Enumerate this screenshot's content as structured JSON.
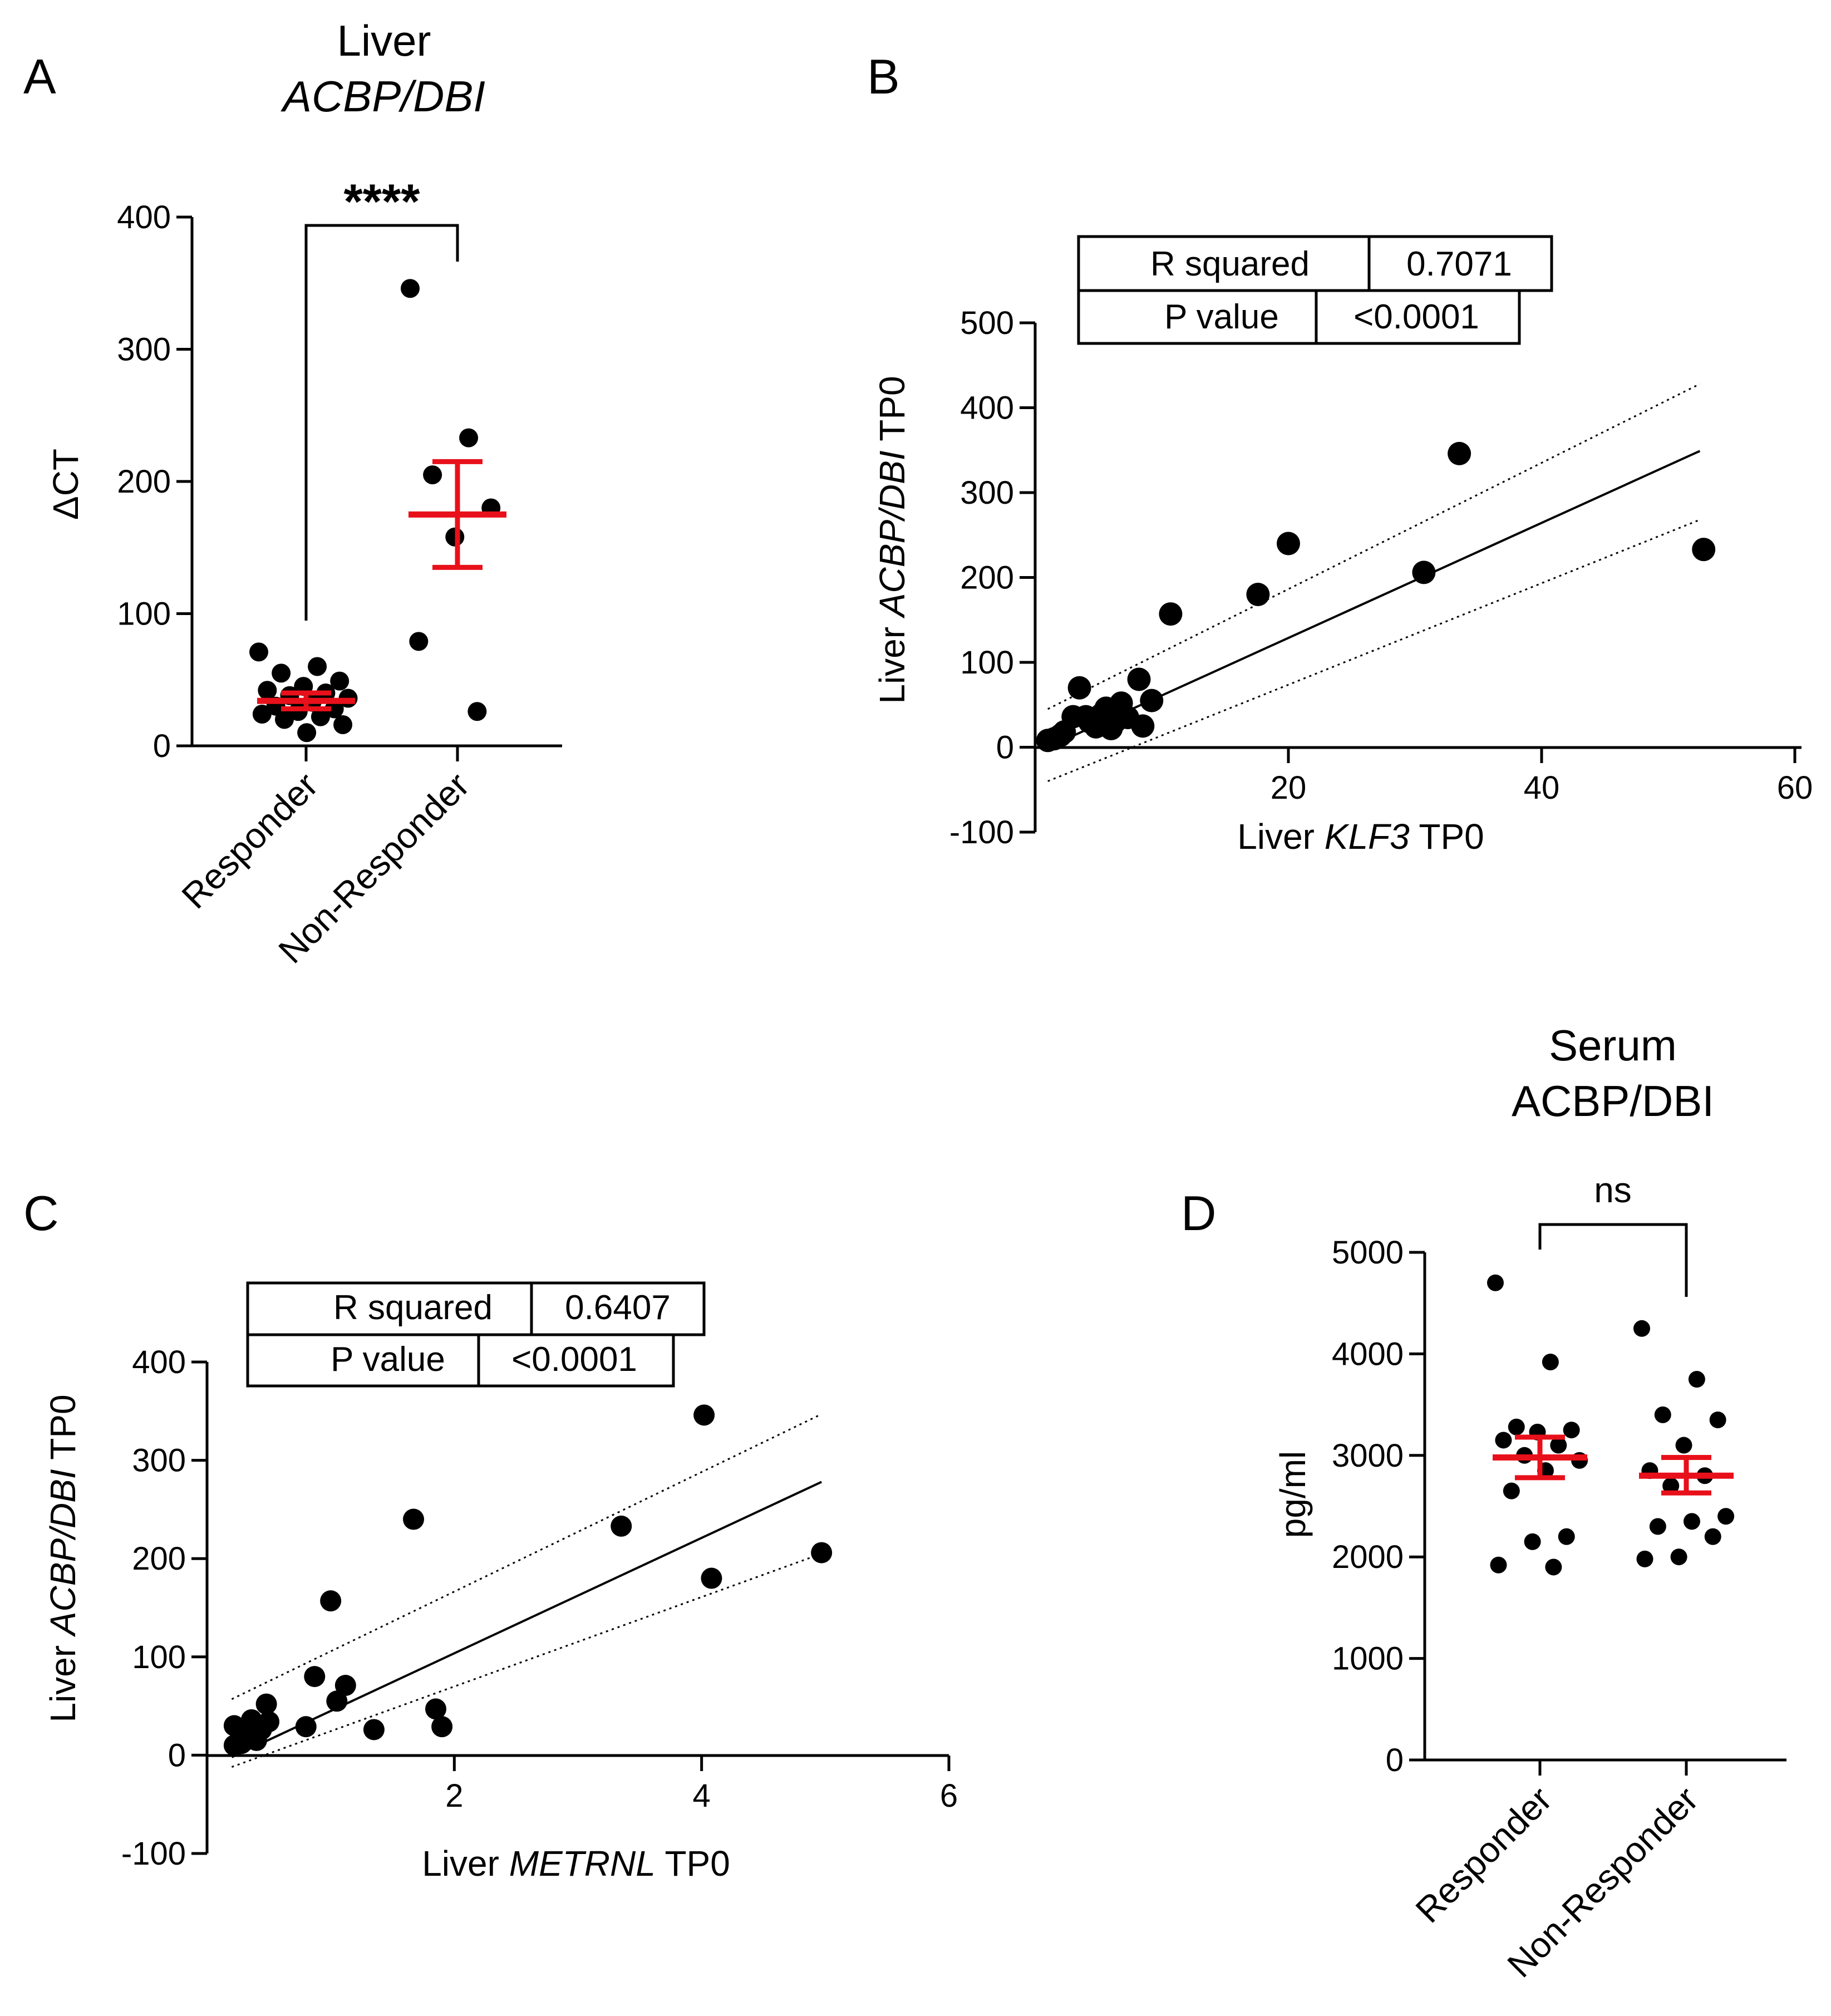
{
  "colors": {
    "mean_sem": "#e8101a",
    "points": "#000000",
    "fit": "#000000"
  },
  "chart_data": [
    {
      "panel": "A",
      "type": "scatter",
      "title": "Liver",
      "subtitle": "ACBP/DBI",
      "ylabel": "ΔCT",
      "categories": [
        "Responder",
        "Non-Responder"
      ],
      "ylim": [
        0,
        400
      ],
      "yticks": [
        "0",
        "100",
        "200",
        "300",
        "400"
      ],
      "significance": "****",
      "series": [
        {
          "values": [
            71,
            60,
            55,
            49,
            45,
            42,
            40,
            38,
            36,
            33,
            30,
            28,
            26,
            24,
            22,
            20,
            16,
            10
          ],
          "mean": 34,
          "sem_low": 28,
          "sem_high": 40
        },
        {
          "values": [
            346,
            233,
            205,
            180,
            158,
            79,
            26
          ],
          "mean": 175,
          "sem_low": 135,
          "sem_high": 215
        }
      ]
    },
    {
      "panel": "B",
      "type": "scatter",
      "xlabel_prefix": "Liver ",
      "xlabel_italic": "KLF3",
      "xlabel_suffix": " TP0",
      "ylabel_prefix": "Liver ",
      "ylabel_italic": "ACBP/DBI",
      "ylabel_suffix": " TP0",
      "xlim": [
        0,
        60
      ],
      "ylim": [
        -100,
        500
      ],
      "xticks": [
        "20",
        "40",
        "60"
      ],
      "yticks": [
        "-100",
        "0",
        "100",
        "200",
        "300",
        "400",
        "500"
      ],
      "stats": [
        {
          "label": "R squared",
          "value": "0.7071"
        },
        {
          "label": "P value",
          "value": "<0.0001"
        }
      ],
      "points": [
        [
          1,
          8
        ],
        [
          1.5,
          10
        ],
        [
          2,
          14
        ],
        [
          2.3,
          18
        ],
        [
          3,
          36
        ],
        [
          3.5,
          70
        ],
        [
          4,
          36
        ],
        [
          4.3,
          30
        ],
        [
          4.8,
          24
        ],
        [
          5.2,
          38
        ],
        [
          5.6,
          46
        ],
        [
          6,
          22
        ],
        [
          6.3,
          30
        ],
        [
          6.8,
          52
        ],
        [
          7.3,
          35
        ],
        [
          8.2,
          80
        ],
        [
          8.5,
          25
        ],
        [
          9.2,
          55
        ],
        [
          10.7,
          157
        ],
        [
          17.6,
          180
        ],
        [
          20,
          240
        ],
        [
          30.7,
          206
        ],
        [
          33.5,
          346
        ],
        [
          52.8,
          233
        ]
      ],
      "fit": {
        "x": [
          1,
          52.5
        ],
        "y": [
          0,
          349
        ]
      },
      "ci_upper": {
        "x": [
          1,
          52.5
        ],
        "y": [
          45,
          428
        ]
      },
      "ci_lower": {
        "x": [
          1,
          52.5
        ],
        "y": [
          -40,
          268
        ]
      }
    },
    {
      "panel": "C",
      "type": "scatter",
      "xlabel_prefix": "Liver ",
      "xlabel_italic": "METRNL",
      "xlabel_suffix": " TP0",
      "ylabel_prefix": "Liver ",
      "ylabel_italic": "ACBP/DBI",
      "ylabel_suffix": " TP0",
      "xlim": [
        0,
        6
      ],
      "ylim": [
        -100,
        400
      ],
      "xticks": [
        "2",
        "4",
        "6"
      ],
      "yticks": [
        "-100",
        "0",
        "100",
        "200",
        "300",
        "400"
      ],
      "stats": [
        {
          "label": "R squared",
          "value": "0.6407"
        },
        {
          "label": "P value",
          "value": "<0.0001"
        }
      ],
      "points": [
        [
          0.22,
          30
        ],
        [
          0.22,
          10
        ],
        [
          0.28,
          12
        ],
        [
          0.32,
          20
        ],
        [
          0.36,
          36
        ],
        [
          0.4,
          15
        ],
        [
          0.44,
          26
        ],
        [
          0.48,
          52
        ],
        [
          0.5,
          34
        ],
        [
          0.8,
          29
        ],
        [
          0.87,
          80
        ],
        [
          1.0,
          157
        ],
        [
          1.05,
          55
        ],
        [
          1.12,
          71
        ],
        [
          1.35,
          26
        ],
        [
          1.67,
          240
        ],
        [
          1.85,
          47
        ],
        [
          1.9,
          29
        ],
        [
          3.35,
          233
        ],
        [
          4.02,
          346
        ],
        [
          4.08,
          180
        ],
        [
          4.97,
          206
        ]
      ],
      "fit": {
        "x": [
          0.2,
          4.97
        ],
        "y": [
          -2,
          278
        ]
      },
      "ci_upper": {
        "x": [
          0.2,
          4.97
        ],
        "y": [
          57,
          347
        ]
      },
      "ci_lower": {
        "x": [
          0.2,
          4.97
        ],
        "y": [
          -12,
          205
        ]
      }
    },
    {
      "panel": "D",
      "type": "scatter",
      "title": "Serum",
      "subtitle": "ACBP/DBI",
      "ylabel": "pg/ml",
      "categories": [
        "Responder",
        "Non-Responder"
      ],
      "ylim": [
        0,
        5000
      ],
      "yticks": [
        "0",
        "1000",
        "2000",
        "3000",
        "4000",
        "5000"
      ],
      "significance": "ns",
      "series": [
        {
          "values": [
            4700,
            3920,
            3280,
            3250,
            3230,
            3150,
            3100,
            3000,
            2950,
            2850,
            2650,
            2200,
            2150,
            1920,
            1900
          ],
          "mean": 2980,
          "sem_low": 2780,
          "sem_high": 3180
        },
        {
          "values": [
            4250,
            3750,
            3400,
            3350,
            3100,
            2850,
            2800,
            2700,
            2400,
            2350,
            2300,
            2200,
            2000,
            1980
          ],
          "mean": 2800,
          "sem_low": 2630,
          "sem_high": 2980
        }
      ]
    }
  ]
}
